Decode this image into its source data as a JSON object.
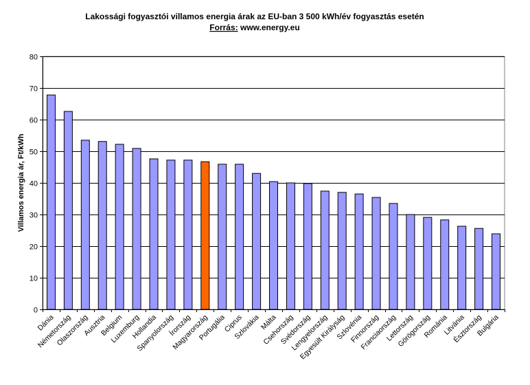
{
  "chart_data": {
    "type": "bar",
    "title": "Lakossági fogyasztói villamos energia árak az EU-ban 3 500 kWh/év fogyasztás esetén",
    "subtitle_label": "Forrás:",
    "subtitle_value": "www.energy.eu",
    "xlabel": "",
    "ylabel": "Villamos energia ár, Ft/kWh",
    "ylim": [
      0,
      80
    ],
    "yticks": [
      0,
      10,
      20,
      30,
      40,
      50,
      60,
      70,
      80
    ],
    "grid": true,
    "legend": "none",
    "bar_color": "#9999ff",
    "highlight_color": "#ff6600",
    "highlight_category": "Magyarország",
    "categories": [
      "Dánia",
      "Németország",
      "Olaszország",
      "Ausztria",
      "Belgium",
      "Luxemburg",
      "Hollandia",
      "Spanyolország",
      "Írország",
      "Magyarország",
      "Portugália",
      "Ciprus",
      "Szlovákia",
      "Málta",
      "Csehország",
      "Svédország",
      "Lengyelország",
      "Egyesült Királyság",
      "Szlovénia",
      "Finnország",
      "Franciaország",
      "Lettország",
      "Görögország",
      "Románia",
      "Litvánia",
      "Észtország",
      "Bulgária"
    ],
    "values": [
      67.8,
      62.6,
      53.5,
      53.1,
      52.2,
      50.9,
      47.6,
      47.2,
      47.2,
      46.7,
      45.9,
      45.9,
      43.0,
      40.4,
      40.0,
      39.8,
      37.4,
      37.0,
      36.5,
      35.4,
      33.5,
      30.0,
      29.1,
      28.3,
      26.3,
      25.6,
      23.9
    ]
  }
}
